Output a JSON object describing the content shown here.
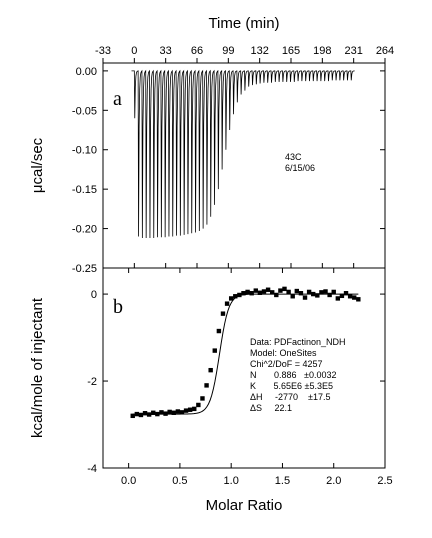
{
  "chart_data": [
    {
      "type": "line",
      "panel_label": "a",
      "xlabel": "Time (min)",
      "ylabel": "μcal/sec",
      "xlim": [
        -33,
        264
      ],
      "ylim": [
        -0.25,
        0.01
      ],
      "xticks": [
        -33,
        0,
        33,
        66,
        99,
        132,
        165,
        198,
        231,
        264
      ],
      "yticks": [
        0.0,
        -0.05,
        -0.1,
        -0.15,
        -0.2,
        -0.25
      ],
      "ytick_labels": [
        "0.00",
        "-0.05",
        "-0.10",
        "-0.15",
        "-0.20",
        "-0.25"
      ],
      "annotation": [
        "43C",
        "6/15/06"
      ],
      "baseline": 0.0,
      "injection_start_min": 0,
      "injection_interval_min": 4,
      "injection_count": 58,
      "peak_values": [
        -0.06,
        -0.21,
        -0.212,
        -0.212,
        -0.212,
        -0.212,
        -0.211,
        -0.211,
        -0.211,
        -0.21,
        -0.21,
        -0.209,
        -0.209,
        -0.208,
        -0.207,
        -0.206,
        -0.205,
        -0.203,
        -0.2,
        -0.195,
        -0.185,
        -0.17,
        -0.15,
        -0.125,
        -0.1,
        -0.075,
        -0.055,
        -0.04,
        -0.03,
        -0.025,
        -0.02,
        -0.018,
        -0.017,
        -0.016,
        -0.015,
        -0.015,
        -0.015,
        -0.014,
        -0.014,
        -0.014,
        -0.014,
        -0.014,
        -0.014,
        -0.013,
        -0.013,
        -0.013,
        -0.013,
        -0.013,
        -0.013,
        -0.013,
        -0.013,
        -0.013,
        -0.012,
        -0.012,
        -0.012,
        -0.012,
        -0.012,
        -0.012
      ]
    },
    {
      "type": "scatter",
      "panel_label": "b",
      "xlabel": "Molar Ratio",
      "ylabel": "kcal/mole of injectant",
      "xlim": [
        -0.25,
        2.5
      ],
      "ylim": [
        -4,
        0.6
      ],
      "xticks": [
        0.0,
        0.5,
        1.0,
        1.5,
        2.0,
        2.5
      ],
      "xtick_labels": [
        "0.0",
        "0.5",
        "1.0",
        "1.5",
        "2.0",
        "2.5"
      ],
      "yticks": [
        0,
        -2,
        -4
      ],
      "ytick_labels": [
        "0",
        "-2",
        "-4"
      ],
      "fit_text": [
        "Data: PDFactinon_NDH",
        "Model: OneSites",
        "Chi^2/DoF = 4257",
        "N       0.886   ±0.0032",
        "K       5.65E6 ±5.3E5",
        "ΔH     -2770    ±17.5",
        "ΔS     22.1"
      ],
      "fit_params": {
        "N": 0.886,
        "K": 5650000.0,
        "dH": -2770
      },
      "x": [
        0.04,
        0.08,
        0.12,
        0.16,
        0.2,
        0.24,
        0.28,
        0.32,
        0.36,
        0.4,
        0.44,
        0.48,
        0.52,
        0.56,
        0.6,
        0.64,
        0.68,
        0.72,
        0.76,
        0.8,
        0.84,
        0.88,
        0.92,
        0.96,
        1.0,
        1.04,
        1.08,
        1.12,
        1.16,
        1.2,
        1.24,
        1.28,
        1.32,
        1.36,
        1.4,
        1.44,
        1.48,
        1.52,
        1.56,
        1.6,
        1.64,
        1.68,
        1.72,
        1.76,
        1.8,
        1.84,
        1.88,
        1.92,
        1.96,
        2.0,
        2.04,
        2.08,
        2.12,
        2.16,
        2.2,
        2.24
      ],
      "y": [
        -2.8,
        -2.76,
        -2.78,
        -2.74,
        -2.77,
        -2.73,
        -2.76,
        -2.72,
        -2.75,
        -2.71,
        -2.73,
        -2.7,
        -2.72,
        -2.68,
        -2.66,
        -2.64,
        -2.55,
        -2.4,
        -2.1,
        -1.75,
        -1.3,
        -0.85,
        -0.45,
        -0.22,
        -0.1,
        -0.05,
        -0.02,
        0.02,
        0.05,
        0.02,
        0.08,
        0.03,
        0.06,
        0.1,
        0.04,
        -0.02,
        0.08,
        0.12,
        0.05,
        -0.05,
        0.07,
        0.02,
        -0.08,
        0.05,
        0.0,
        -0.03,
        0.04,
        0.06,
        -0.02,
        0.05,
        -0.1,
        -0.04,
        0.02,
        -0.05,
        -0.08,
        -0.12
      ]
    }
  ]
}
